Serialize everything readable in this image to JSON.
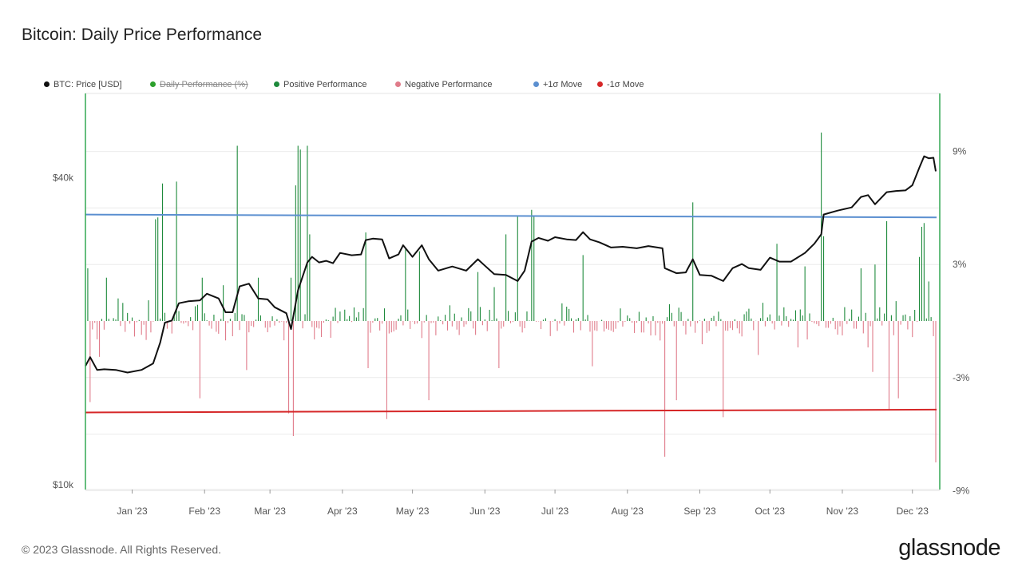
{
  "title": "Bitcoin: Daily Price Performance",
  "legend": [
    {
      "label": "BTC: Price [USD]",
      "color": "#111111",
      "disabled": false
    },
    {
      "label": "Daily Performance (%)",
      "color": "#2ca02c",
      "disabled": true
    },
    {
      "label": "Positive Performance",
      "color": "#1e8a3c",
      "disabled": false
    },
    {
      "label": "Negative Performance",
      "color": "#e07b8a",
      "disabled": false
    },
    {
      "label": "+1σ Move",
      "color": "#5b8fd0",
      "disabled": false
    },
    {
      "label": "-1σ Move",
      "color": "#d62728",
      "disabled": false
    }
  ],
  "footer": "© 2023 Glassnode. All Rights Reserved.",
  "brand": "glassnode",
  "chart_data": {
    "type": "bar+line",
    "x_ticks": [
      "Jan '23",
      "Feb '23",
      "Mar '23",
      "Apr '23",
      "May '23",
      "Jun '23",
      "Jul '23",
      "Aug '23",
      "Sep '23",
      "Oct '23",
      "Nov '23",
      "Dec '23"
    ],
    "left_axis": {
      "scale": "log",
      "ticks": [
        "$10k",
        "$40k"
      ],
      "tick_values": [
        10000,
        40000
      ],
      "range": [
        10000,
        60000
      ]
    },
    "right_axis": {
      "ticks": [
        "9%",
        "3%",
        "-3%",
        "-9%"
      ],
      "tick_values": [
        9,
        3,
        -3,
        -9
      ],
      "range": [
        -9,
        12
      ]
    },
    "x_range": [
      "2022-12-12",
      "2023-12-11"
    ],
    "plus_sigma": {
      "name": "+1σ Move",
      "value": 5.65,
      "end_value": 5.5
    },
    "minus_sigma": {
      "name": "-1σ Move",
      "value": -4.85,
      "end_value": -4.7
    },
    "price_series": {
      "name": "BTC: Price [USD]",
      "points": [
        [
          "2022-12-12",
          17100
        ],
        [
          "2022-12-14",
          17800
        ],
        [
          "2022-12-17",
          16800
        ],
        [
          "2022-12-20",
          16850
        ],
        [
          "2022-12-25",
          16800
        ],
        [
          "2022-12-30",
          16600
        ],
        [
          "2023-01-05",
          16800
        ],
        [
          "2023-01-10",
          17300
        ],
        [
          "2023-01-13",
          19000
        ],
        [
          "2023-01-15",
          20800
        ],
        [
          "2023-01-18",
          21000
        ],
        [
          "2023-01-21",
          22700
        ],
        [
          "2023-01-25",
          22900
        ],
        [
          "2023-01-30",
          23000
        ],
        [
          "2023-02-02",
          23700
        ],
        [
          "2023-02-07",
          23200
        ],
        [
          "2023-02-10",
          21800
        ],
        [
          "2023-02-13",
          21800
        ],
        [
          "2023-02-16",
          24500
        ],
        [
          "2023-02-20",
          24800
        ],
        [
          "2023-02-24",
          23200
        ],
        [
          "2023-02-28",
          23100
        ],
        [
          "2023-03-03",
          22300
        ],
        [
          "2023-03-08",
          21700
        ],
        [
          "2023-03-10",
          20200
        ],
        [
          "2023-03-13",
          24100
        ],
        [
          "2023-03-17",
          27300
        ],
        [
          "2023-03-19",
          28000
        ],
        [
          "2023-03-22",
          27300
        ],
        [
          "2023-03-25",
          27500
        ],
        [
          "2023-03-28",
          27200
        ],
        [
          "2023-03-31",
          28500
        ],
        [
          "2023-04-05",
          28200
        ],
        [
          "2023-04-09",
          28300
        ],
        [
          "2023-04-11",
          30200
        ],
        [
          "2023-04-14",
          30400
        ],
        [
          "2023-04-18",
          30300
        ],
        [
          "2023-04-21",
          27800
        ],
        [
          "2023-04-25",
          28300
        ],
        [
          "2023-04-27",
          29500
        ],
        [
          "2023-05-01",
          28000
        ],
        [
          "2023-05-05",
          29500
        ],
        [
          "2023-05-08",
          27700
        ],
        [
          "2023-05-12",
          26300
        ],
        [
          "2023-05-18",
          26800
        ],
        [
          "2023-05-24",
          26300
        ],
        [
          "2023-05-29",
          27700
        ],
        [
          "2023-06-01",
          26900
        ],
        [
          "2023-06-05",
          25900
        ],
        [
          "2023-06-10",
          25800
        ],
        [
          "2023-06-15",
          25100
        ],
        [
          "2023-06-18",
          26300
        ],
        [
          "2023-06-21",
          30000
        ],
        [
          "2023-06-24",
          30500
        ],
        [
          "2023-06-28",
          30100
        ],
        [
          "2023-07-01",
          30600
        ],
        [
          "2023-07-06",
          30300
        ],
        [
          "2023-07-10",
          30200
        ],
        [
          "2023-07-13",
          31300
        ],
        [
          "2023-07-16",
          30300
        ],
        [
          "2023-07-20",
          29900
        ],
        [
          "2023-07-25",
          29200
        ],
        [
          "2023-07-30",
          29300
        ],
        [
          "2023-08-05",
          29100
        ],
        [
          "2023-08-10",
          29400
        ],
        [
          "2023-08-16",
          29100
        ],
        [
          "2023-08-17",
          26600
        ],
        [
          "2023-08-22",
          26000
        ],
        [
          "2023-08-26",
          26100
        ],
        [
          "2023-08-29",
          27700
        ],
        [
          "2023-09-01",
          25800
        ],
        [
          "2023-09-06",
          25700
        ],
        [
          "2023-09-11",
          25100
        ],
        [
          "2023-09-15",
          26600
        ],
        [
          "2023-09-19",
          27100
        ],
        [
          "2023-09-22",
          26600
        ],
        [
          "2023-09-27",
          26400
        ],
        [
          "2023-10-01",
          27900
        ],
        [
          "2023-10-05",
          27400
        ],
        [
          "2023-10-10",
          27400
        ],
        [
          "2023-10-16",
          28500
        ],
        [
          "2023-10-20",
          29700
        ],
        [
          "2023-10-23",
          31000
        ],
        [
          "2023-10-24",
          33900
        ],
        [
          "2023-10-30",
          34500
        ],
        [
          "2023-11-05",
          35000
        ],
        [
          "2023-11-09",
          36700
        ],
        [
          "2023-11-12",
          37000
        ],
        [
          "2023-11-15",
          35500
        ],
        [
          "2023-11-20",
          37500
        ],
        [
          "2023-11-24",
          37700
        ],
        [
          "2023-11-28",
          37800
        ],
        [
          "2023-12-01",
          38700
        ],
        [
          "2023-12-04",
          41900
        ],
        [
          "2023-12-06",
          44100
        ],
        [
          "2023-12-08",
          43700
        ],
        [
          "2023-12-10",
          43800
        ],
        [
          "2023-12-11",
          41200
        ]
      ]
    },
    "positive_series": {
      "name": "Positive Performance",
      "points": [
        [
          "2022-12-13",
          2.8
        ],
        [
          "2022-12-21",
          2.3
        ],
        [
          "2022-12-26",
          1.2
        ],
        [
          "2023-01-08",
          1.1
        ],
        [
          "2023-01-11",
          5.4
        ],
        [
          "2023-01-12",
          5.5
        ],
        [
          "2023-01-14",
          7.3
        ],
        [
          "2023-01-20",
          7.4
        ],
        [
          "2023-01-31",
          2.3
        ],
        [
          "2023-02-09",
          1.9
        ],
        [
          "2023-02-15",
          9.3
        ],
        [
          "2023-02-24",
          2.3
        ],
        [
          "2023-03-10",
          2.3
        ],
        [
          "2023-03-12",
          7.2
        ],
        [
          "2023-03-13",
          9.3
        ],
        [
          "2023-03-14",
          9.1
        ],
        [
          "2023-03-17",
          9.3
        ],
        [
          "2023-03-18",
          4.6
        ],
        [
          "2023-04-11",
          4.7
        ],
        [
          "2023-04-28",
          3.8
        ],
        [
          "2023-05-04",
          3.7
        ],
        [
          "2023-05-29",
          2.6
        ],
        [
          "2023-06-05",
          1.8
        ],
        [
          "2023-06-10",
          4.6
        ],
        [
          "2023-06-15",
          5.6
        ],
        [
          "2023-06-21",
          5.9
        ],
        [
          "2023-06-22",
          5.6
        ],
        [
          "2023-07-13",
          3.5
        ],
        [
          "2023-08-29",
          6.3
        ],
        [
          "2023-10-04",
          4.1
        ],
        [
          "2023-10-16",
          2.9
        ],
        [
          "2023-10-23",
          10.0
        ],
        [
          "2023-10-24",
          4.5
        ],
        [
          "2023-11-09",
          2.8
        ],
        [
          "2023-11-15",
          3.0
        ],
        [
          "2023-11-20",
          5.3
        ],
        [
          "2023-12-04",
          3.4
        ],
        [
          "2023-12-05",
          5.0
        ],
        [
          "2023-12-06",
          5.2
        ],
        [
          "2023-12-08",
          2.1
        ]
      ],
      "noise_level": 0.8
    },
    "negative_series": {
      "name": "Negative Performance",
      "points": [
        [
          "2022-12-14",
          -4.3
        ],
        [
          "2022-12-18",
          -1.9
        ],
        [
          "2023-01-30",
          -4.1
        ],
        [
          "2023-02-09",
          -4.9
        ],
        [
          "2023-02-19",
          -2.6
        ],
        [
          "2023-03-09",
          -4.9
        ],
        [
          "2023-03-11",
          -6.1
        ],
        [
          "2023-04-12",
          -2.5
        ],
        [
          "2023-04-20",
          -5.2
        ],
        [
          "2023-05-08",
          -4.2
        ],
        [
          "2023-06-05",
          -4.9
        ],
        [
          "2023-06-07",
          -2.5
        ],
        [
          "2023-07-17",
          -2.4
        ],
        [
          "2023-08-17",
          -7.2
        ],
        [
          "2023-08-22",
          -4.2
        ],
        [
          "2023-09-11",
          -5.1
        ],
        [
          "2023-09-26",
          -1.8
        ],
        [
          "2023-10-13",
          -1.4
        ],
        [
          "2023-11-12",
          -1.4
        ],
        [
          "2023-11-14",
          -2.7
        ],
        [
          "2023-11-21",
          -4.7
        ],
        [
          "2023-11-25",
          -4.1
        ],
        [
          "2023-12-11",
          -7.5
        ]
      ],
      "noise_level": 0.9
    },
    "grid": true,
    "legend_position": "top-left"
  }
}
